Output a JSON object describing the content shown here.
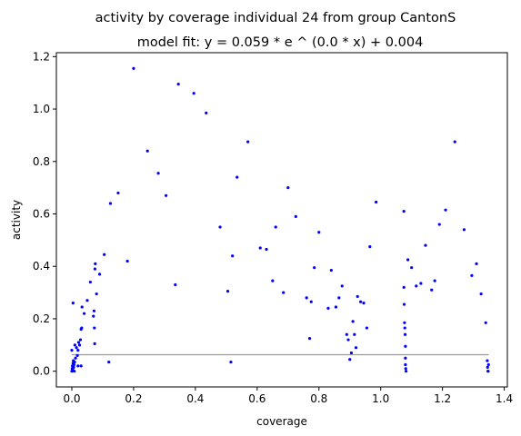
{
  "chart_data": {
    "type": "scatter",
    "title": "activity by coverage individual 24 from group CantonS",
    "subtitle": "model fit: y = 0.059 * e ^ (0.0 * x) + 0.004",
    "xlabel": "coverage",
    "ylabel": "activity",
    "xlim": [
      -0.05,
      1.41
    ],
    "ylim": [
      -0.06,
      1.215
    ],
    "xticks": [
      "0.0",
      "0.2",
      "0.4",
      "0.6",
      "0.8",
      "1.0",
      "1.2",
      "1.4"
    ],
    "xtick_values": [
      0.0,
      0.2,
      0.4,
      0.6,
      0.8,
      1.0,
      1.2,
      1.4
    ],
    "yticks": [
      "0.0",
      "0.2",
      "0.4",
      "0.6",
      "0.8",
      "1.0",
      "1.2"
    ],
    "ytick_values": [
      0.0,
      0.2,
      0.4,
      0.6,
      0.8,
      1.0,
      1.2
    ],
    "grid": false,
    "point_color": "#0000ff",
    "fit_color": "#999999",
    "fit_line": {
      "x": [
        0.0,
        1.35
      ],
      "y": [
        0.063,
        0.063
      ]
    },
    "points": [
      [
        0.0,
        0.0
      ],
      [
        0.001,
        0.01
      ],
      [
        0.002,
        0.02
      ],
      [
        0.003,
        0.005
      ],
      [
        0.004,
        0.03
      ],
      [
        0.005,
        0.04
      ],
      [
        0.006,
        0.015
      ],
      [
        0.007,
        0.025
      ],
      [
        0.008,
        0.0
      ],
      [
        0.009,
        0.035
      ],
      [
        0.0,
        0.08
      ],
      [
        0.004,
        0.26
      ],
      [
        0.01,
        0.1
      ],
      [
        0.012,
        0.05
      ],
      [
        0.015,
        0.09
      ],
      [
        0.018,
        0.06
      ],
      [
        0.02,
        0.08
      ],
      [
        0.02,
        0.02
      ],
      [
        0.022,
        0.11
      ],
      [
        0.025,
        0.1
      ],
      [
        0.028,
        0.12
      ],
      [
        0.03,
        0.16
      ],
      [
        0.032,
        0.165
      ],
      [
        0.033,
        0.245
      ],
      [
        0.03,
        0.02
      ],
      [
        0.04,
        0.22
      ],
      [
        0.05,
        0.27
      ],
      [
        0.06,
        0.34
      ],
      [
        0.07,
        0.21
      ],
      [
        0.072,
        0.23
      ],
      [
        0.073,
        0.165
      ],
      [
        0.074,
        0.105
      ],
      [
        0.075,
        0.39
      ],
      [
        0.076,
        0.41
      ],
      [
        0.08,
        0.295
      ],
      [
        0.09,
        0.37
      ],
      [
        0.105,
        0.445
      ],
      [
        0.12,
        0.035
      ],
      [
        0.125,
        0.64
      ],
      [
        0.15,
        0.68
      ],
      [
        0.18,
        0.42
      ],
      [
        0.2,
        1.155
      ],
      [
        0.245,
        0.84
      ],
      [
        0.28,
        0.755
      ],
      [
        0.305,
        0.67
      ],
      [
        0.335,
        0.33
      ],
      [
        0.345,
        1.095
      ],
      [
        0.395,
        1.06
      ],
      [
        0.435,
        0.985
      ],
      [
        0.48,
        0.55
      ],
      [
        0.505,
        0.305
      ],
      [
        0.515,
        0.035
      ],
      [
        0.52,
        0.44
      ],
      [
        0.535,
        0.74
      ],
      [
        0.57,
        0.875
      ],
      [
        0.61,
        0.47
      ],
      [
        0.63,
        0.465
      ],
      [
        0.65,
        0.345
      ],
      [
        0.66,
        0.55
      ],
      [
        0.685,
        0.3
      ],
      [
        0.7,
        0.7
      ],
      [
        0.725,
        0.59
      ],
      [
        0.76,
        0.28
      ],
      [
        0.77,
        0.125
      ],
      [
        0.775,
        0.265
      ],
      [
        0.785,
        0.395
      ],
      [
        0.8,
        0.53
      ],
      [
        0.83,
        0.24
      ],
      [
        0.84,
        0.385
      ],
      [
        0.855,
        0.245
      ],
      [
        0.865,
        0.28
      ],
      [
        0.875,
        0.325
      ],
      [
        0.89,
        0.14
      ],
      [
        0.895,
        0.12
      ],
      [
        0.9,
        0.045
      ],
      [
        0.905,
        0.07
      ],
      [
        0.91,
        0.19
      ],
      [
        0.915,
        0.14
      ],
      [
        0.92,
        0.09
      ],
      [
        0.925,
        0.285
      ],
      [
        0.935,
        0.265
      ],
      [
        0.945,
        0.26
      ],
      [
        0.955,
        0.165
      ],
      [
        0.965,
        0.475
      ],
      [
        0.985,
        0.645
      ],
      [
        1.075,
        0.61
      ],
      [
        1.075,
        0.32
      ],
      [
        1.076,
        0.255
      ],
      [
        1.077,
        0.185
      ],
      [
        1.078,
        0.165
      ],
      [
        1.079,
        0.14
      ],
      [
        1.08,
        0.095
      ],
      [
        1.08,
        0.05
      ],
      [
        1.08,
        0.025
      ],
      [
        1.081,
        0.01
      ],
      [
        1.082,
        0.0
      ],
      [
        1.088,
        0.425
      ],
      [
        1.1,
        0.395
      ],
      [
        1.115,
        0.325
      ],
      [
        1.13,
        0.335
      ],
      [
        1.145,
        0.48
      ],
      [
        1.165,
        0.31
      ],
      [
        1.175,
        0.345
      ],
      [
        1.19,
        0.56
      ],
      [
        1.21,
        0.615
      ],
      [
        1.24,
        0.875
      ],
      [
        1.27,
        0.54
      ],
      [
        1.295,
        0.365
      ],
      [
        1.31,
        0.41
      ],
      [
        1.325,
        0.295
      ],
      [
        1.34,
        0.185
      ],
      [
        1.345,
        0.04
      ],
      [
        1.346,
        0.015
      ],
      [
        1.347,
        0.0
      ],
      [
        1.348,
        0.0
      ],
      [
        1.349,
        0.025
      ]
    ]
  }
}
